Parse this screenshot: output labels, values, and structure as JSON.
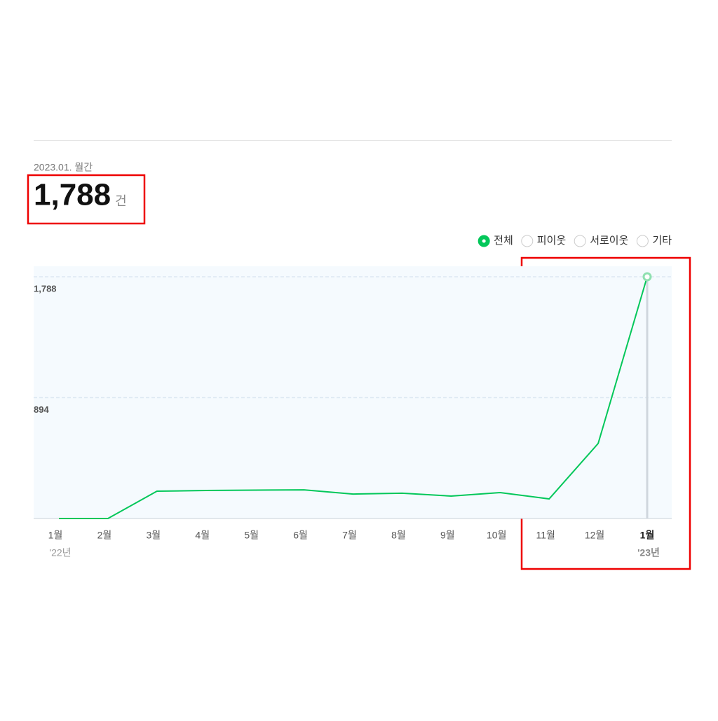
{
  "chart_data": {
    "type": "line",
    "summary_label": "2023.01. 월간",
    "summary_value": "1,788",
    "summary_unit": "건",
    "filters": [
      {
        "label": "전체",
        "selected": true
      },
      {
        "label": "피이웃",
        "selected": false
      },
      {
        "label": "서로이웃",
        "selected": false
      },
      {
        "label": "기타",
        "selected": false
      }
    ],
    "categories": [
      "1월",
      "2월",
      "3월",
      "4월",
      "5월",
      "6월",
      "7월",
      "8월",
      "9월",
      "10월",
      "11월",
      "12월",
      "1월"
    ],
    "year_labels": [
      "'22년",
      null,
      null,
      null,
      null,
      null,
      null,
      null,
      null,
      null,
      null,
      null,
      "'23년"
    ],
    "values": [
      0,
      0,
      202,
      207,
      210,
      212,
      181,
      187,
      166,
      192,
      145,
      555,
      1788
    ],
    "color": "#03c75a",
    "ylim": [
      0,
      1788
    ],
    "yticks": [
      894,
      {
        "value": 1788,
        "label": "1,788"
      }
    ],
    "grid": true
  }
}
